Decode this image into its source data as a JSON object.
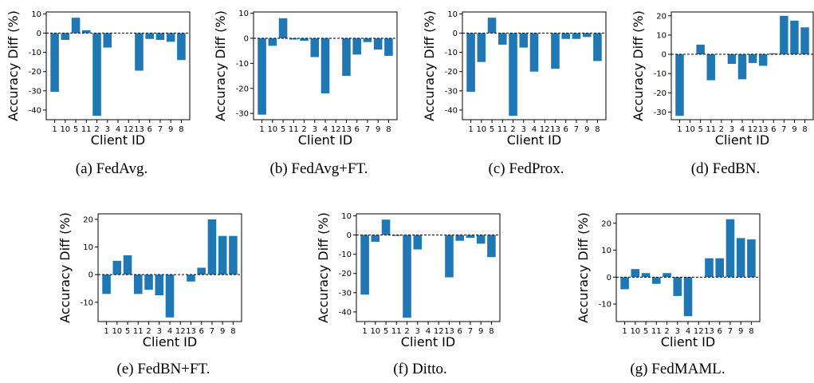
{
  "chart_data": [
    {
      "type": "bar",
      "caption": "(a) FedAvg.",
      "categories": [
        "1",
        "10",
        "5",
        "11",
        "2",
        "3",
        "4",
        "12",
        "13",
        "6",
        "7",
        "9",
        "8"
      ],
      "values": [
        -30.5,
        -3.5,
        8,
        1.5,
        -43,
        -7.5,
        0,
        0,
        -19.5,
        -3,
        -3.5,
        -4.5,
        -14
      ],
      "xlabel": "Client ID",
      "ylabel": "Accuracy Diff (%)",
      "ylim": [
        -45,
        11
      ],
      "yticks": [
        10,
        0,
        -10,
        -20,
        -30,
        -40
      ]
    },
    {
      "type": "bar",
      "caption": "(b) FedAvg+FT.",
      "categories": [
        "1",
        "10",
        "5",
        "11",
        "2",
        "3",
        "4",
        "12",
        "13",
        "6",
        "7",
        "9",
        "8"
      ],
      "values": [
        -30.5,
        -3,
        8,
        -0.5,
        -1,
        -7.5,
        -22,
        0,
        -15,
        -6.5,
        -1.5,
        -4.5,
        -7
      ],
      "xlabel": "Client ID",
      "ylabel": "Accuracy Diff (%)",
      "ylim": [
        -32.5,
        10.5
      ],
      "yticks": [
        10,
        0,
        -10,
        -20,
        -30
      ]
    },
    {
      "type": "bar",
      "caption": "(c) FedProx.",
      "categories": [
        "1",
        "10",
        "5",
        "11",
        "2",
        "3",
        "4",
        "12",
        "13",
        "6",
        "7",
        "9",
        "8"
      ],
      "values": [
        -30.5,
        -15,
        8,
        -6,
        -43,
        -7.5,
        -20,
        0,
        -18.5,
        -3,
        -3,
        -2,
        -14.5
      ],
      "xlabel": "Client ID",
      "ylabel": "Accuracy Diff (%)",
      "ylim": [
        -45,
        11
      ],
      "yticks": [
        10,
        0,
        -10,
        -20,
        -30,
        -40
      ]
    },
    {
      "type": "bar",
      "caption": "(d) FedBN.",
      "categories": [
        "1",
        "10",
        "5",
        "11",
        "2",
        "3",
        "4",
        "12",
        "13",
        "6",
        "7",
        "9",
        "8"
      ],
      "values": [
        -32,
        0,
        5,
        -13.5,
        0,
        -5,
        -13,
        -4.5,
        -6,
        0.5,
        20,
        17.5,
        14
      ],
      "xlabel": "Client ID",
      "ylabel": "Accuracy Diff (%)",
      "ylim": [
        -34,
        22
      ],
      "yticks": [
        20,
        10,
        0,
        -10,
        -20,
        -30
      ]
    },
    {
      "type": "bar",
      "caption": "(e) FedBN+FT.",
      "categories": [
        "1",
        "10",
        "5",
        "11",
        "2",
        "3",
        "4",
        "12",
        "13",
        "6",
        "7",
        "9",
        "8"
      ],
      "values": [
        -7,
        5,
        7,
        -7,
        -5.5,
        -7.5,
        -15.5,
        0,
        -2.5,
        2.5,
        20,
        14,
        14
      ],
      "xlabel": "Client ID",
      "ylabel": "Accuracy Diff (%)",
      "ylim": [
        -17,
        22
      ],
      "yticks": [
        20,
        10,
        0,
        -10
      ]
    },
    {
      "type": "bar",
      "caption": "(f) Ditto.",
      "categories": [
        "1",
        "10",
        "5",
        "11",
        "2",
        "3",
        "4",
        "12",
        "13",
        "6",
        "7",
        "9",
        "8"
      ],
      "values": [
        -31,
        -3.5,
        8,
        -0.5,
        -43,
        -7.5,
        0,
        0,
        -22,
        -3,
        -1.5,
        -4.5,
        -11.5
      ],
      "xlabel": "Client ID",
      "ylabel": "Accuracy Diff (%)",
      "ylim": [
        -45,
        11
      ],
      "yticks": [
        10,
        0,
        -10,
        -20,
        -30,
        -40
      ]
    },
    {
      "type": "bar",
      "caption": "(g) FedMAML.",
      "categories": [
        "1",
        "10",
        "5",
        "11",
        "2",
        "3",
        "4",
        "12",
        "13",
        "6",
        "7",
        "9",
        "8"
      ],
      "values": [
        -4.5,
        3,
        1.5,
        -2.5,
        1.5,
        -7,
        -14.5,
        0,
        7,
        7,
        21.5,
        14.5,
        14
      ],
      "xlabel": "Client ID",
      "ylabel": "Accuracy Diff (%)",
      "ylim": [
        -16.5,
        23.5
      ],
      "yticks": [
        20,
        10,
        0,
        -10
      ]
    }
  ],
  "colors": {
    "bar": "#1f77b4",
    "axis": "#000000",
    "zero_line": "#000000"
  }
}
